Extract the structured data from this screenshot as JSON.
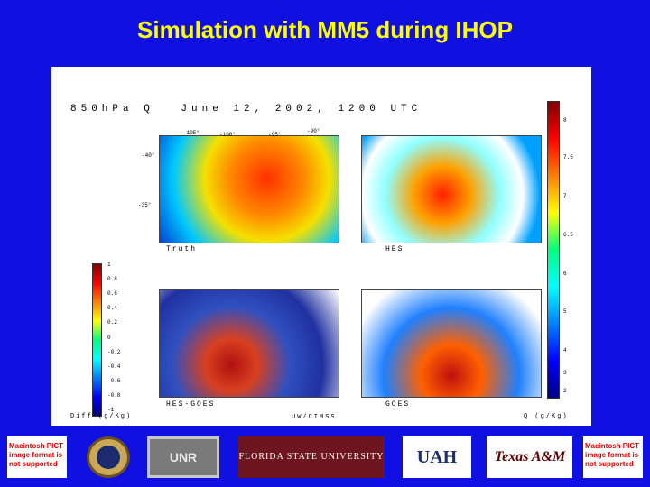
{
  "title": "Simulation with MM5 during IHOP",
  "figure": {
    "header": [
      "850hPa Q",
      "June 12, 2002, 1200 UTC"
    ],
    "maps": [
      {
        "label": "Truth"
      },
      {
        "label": "HES"
      },
      {
        "label": "HES-GOES"
      },
      {
        "label": "GOES"
      }
    ],
    "lon_ticks": [
      "-105°",
      "-100°",
      "-95°",
      "-90°"
    ],
    "lat_ticks": [
      "-40°",
      "-35°"
    ],
    "right_colorbar": {
      "ticks": [
        "8",
        "7.5",
        "7",
        "6.5",
        "6",
        "5",
        "4",
        "3",
        "2"
      ],
      "units": "Q (g/Kg)"
    },
    "left_colorbar": {
      "ticks": [
        "1",
        "0.8",
        "0.6",
        "0.4",
        "0.2",
        "0",
        "-0.2",
        "-0.4",
        "-0.6",
        "-0.8",
        "-1"
      ],
      "units": "Diff (g/Kg)"
    },
    "credit": "UW/CIMSS"
  },
  "logos": {
    "pict_left": "Macintosh PICT image format is not supported",
    "unr": "UNR",
    "fsu": "FLORIDA STATE UNIVERSITY",
    "uah": "UAH",
    "tamu": "Texas A&M",
    "pict_right": "Macintosh PICT image format is not supported"
  }
}
